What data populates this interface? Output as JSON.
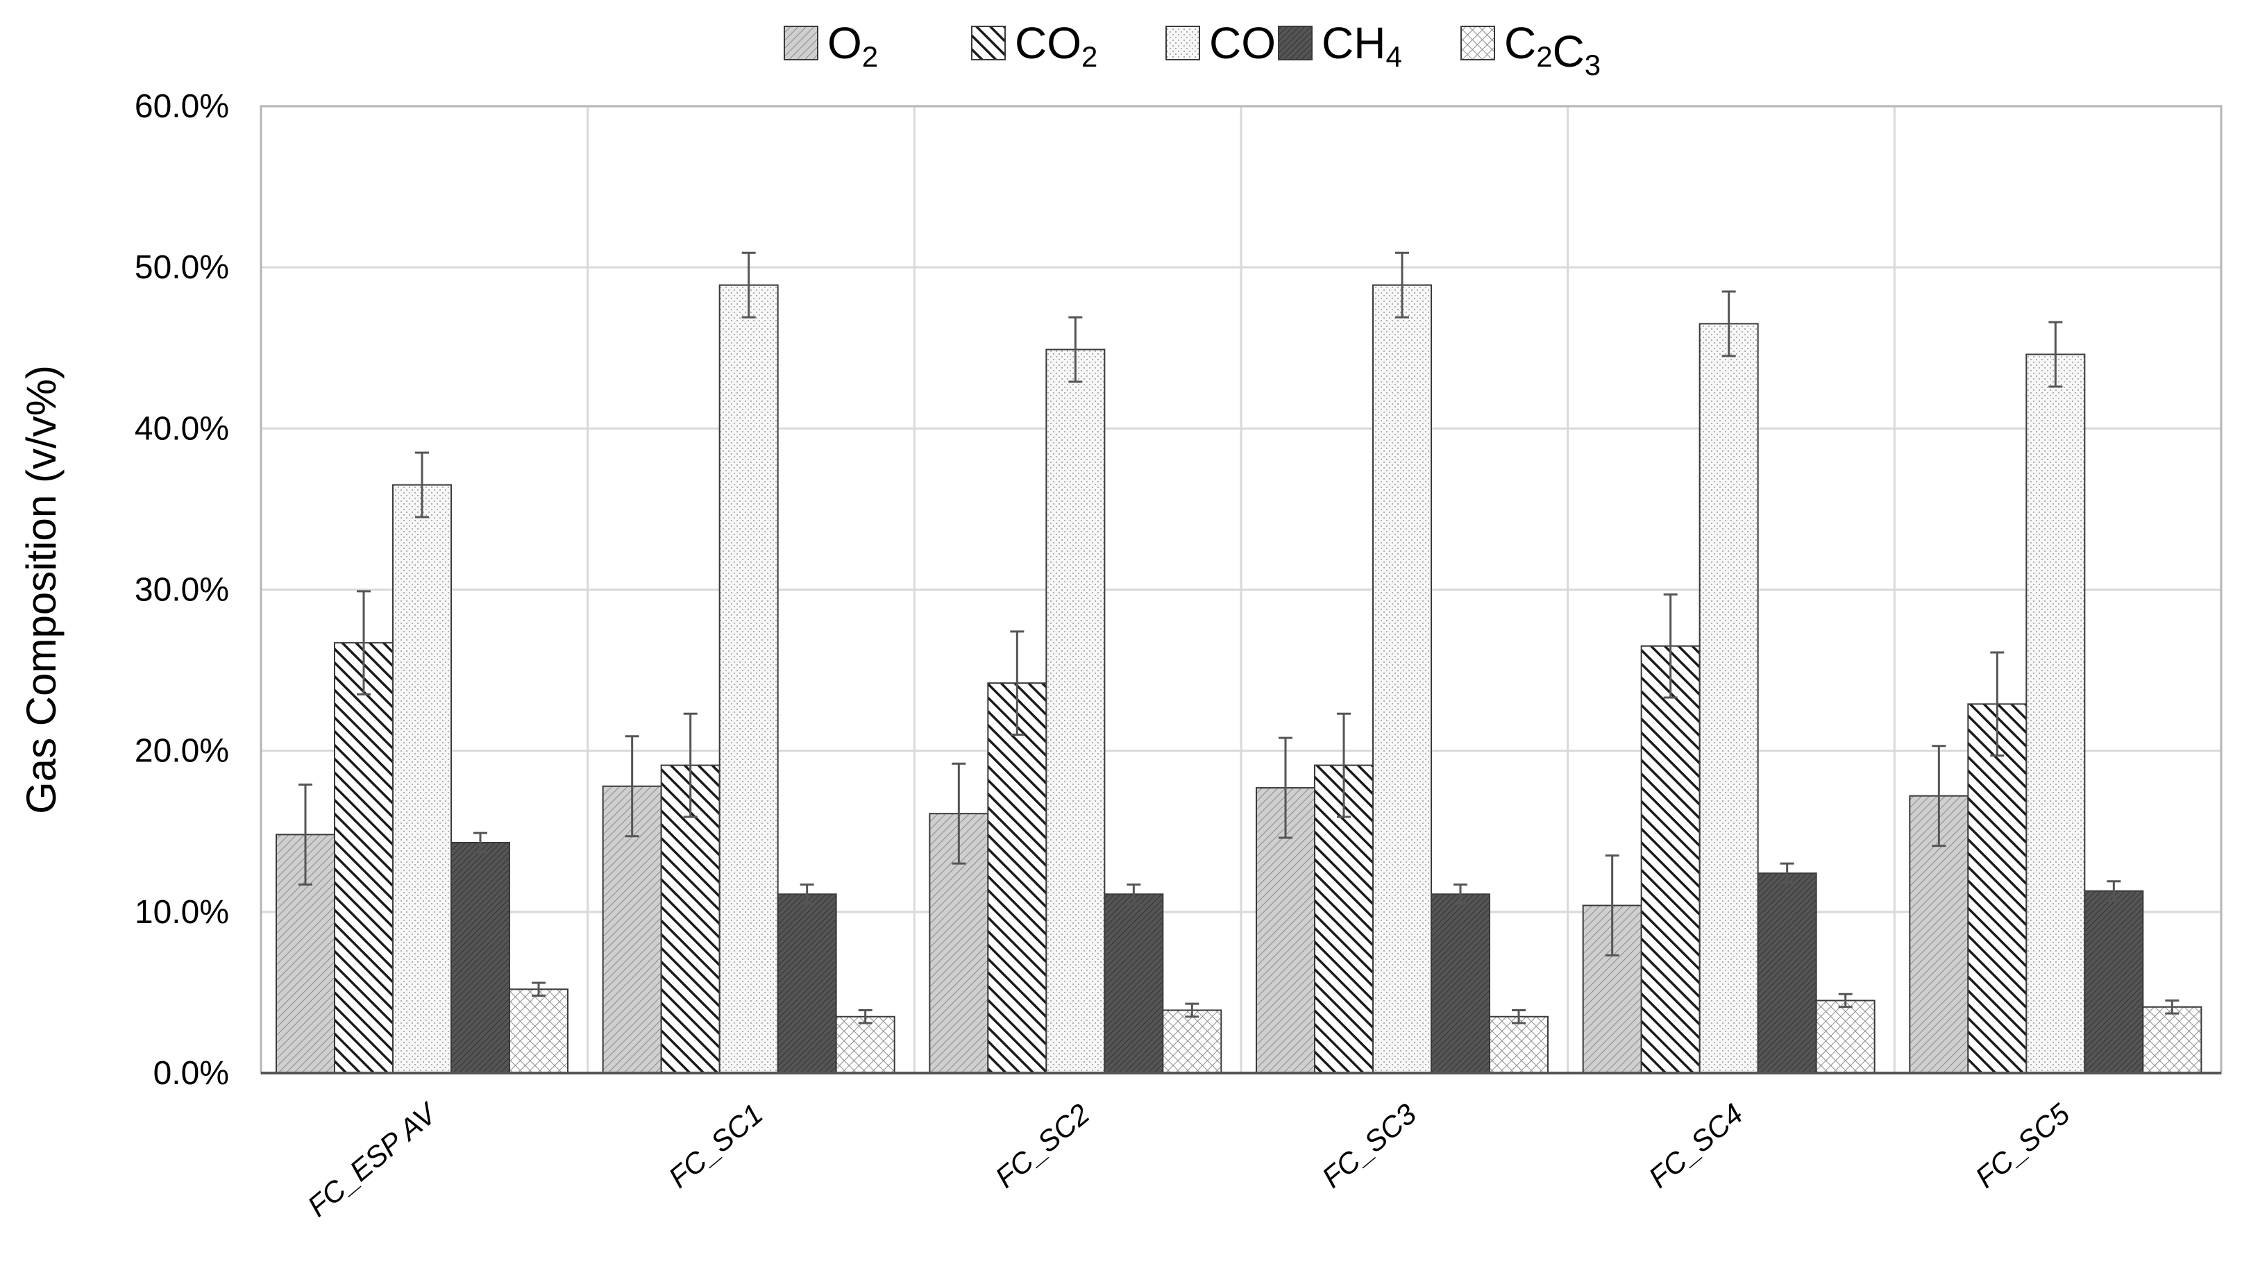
{
  "chart_data": {
    "type": "bar",
    "ylabel": "Gas Composition (v/v%)",
    "xlabel": "",
    "title": "",
    "ylim": [
      0,
      60
    ],
    "y_ticks": [
      0,
      10,
      20,
      30,
      40,
      50,
      60
    ],
    "y_tick_labels": [
      "0.0%",
      "10.0%",
      "20.0%",
      "30.0%",
      "40.0%",
      "50.0%",
      "60.0%"
    ],
    "grid": true,
    "legend_position": "top",
    "categories": [
      "FC_ESP AV",
      "FC_SC1",
      "FC_SC2",
      "FC_SC3",
      "FC_SC4",
      "FC_SC5"
    ],
    "series": [
      {
        "name": "O2",
        "main": "O",
        "sub": "2",
        "pattern": "light-hatch",
        "color": "#c8c8c8",
        "values": [
          14.8,
          17.8,
          16.1,
          17.7,
          10.4,
          17.2
        ],
        "errors": [
          3.1,
          3.1,
          3.1,
          3.1,
          3.1,
          3.1
        ]
      },
      {
        "name": "CO2",
        "main": "CO",
        "sub": "2",
        "pattern": "dense-hatch",
        "color": "#4d4d4d",
        "values": [
          26.7,
          19.1,
          24.2,
          19.1,
          26.5,
          22.9
        ],
        "errors": [
          3.2,
          3.2,
          3.2,
          3.2,
          3.2,
          3.2
        ]
      },
      {
        "name": "CO",
        "main": "CO",
        "sub": "",
        "pattern": "dots",
        "color": "#f4f4f4",
        "values": [
          36.5,
          48.9,
          44.9,
          48.9,
          46.5,
          44.6
        ],
        "errors": [
          2.0,
          2.0,
          2.0,
          2.0,
          2.0,
          2.0
        ]
      },
      {
        "name": "CH4",
        "main": "CH",
        "sub": "4",
        "pattern": "dark",
        "color": "#5a5a5a",
        "values": [
          14.3,
          11.1,
          11.1,
          11.1,
          12.4,
          11.3
        ],
        "errors": [
          0.6,
          0.6,
          0.6,
          0.6,
          0.6,
          0.6
        ]
      },
      {
        "name": "C2C3",
        "main": "C",
        "sub": "2",
        "main2": "C",
        "sub2": "3",
        "pattern": "checker",
        "color": "#d9d9d9",
        "values": [
          5.2,
          3.5,
          3.9,
          3.5,
          4.5,
          4.1
        ],
        "errors": [
          0.4,
          0.4,
          0.4,
          0.4,
          0.4,
          0.4
        ]
      }
    ]
  }
}
